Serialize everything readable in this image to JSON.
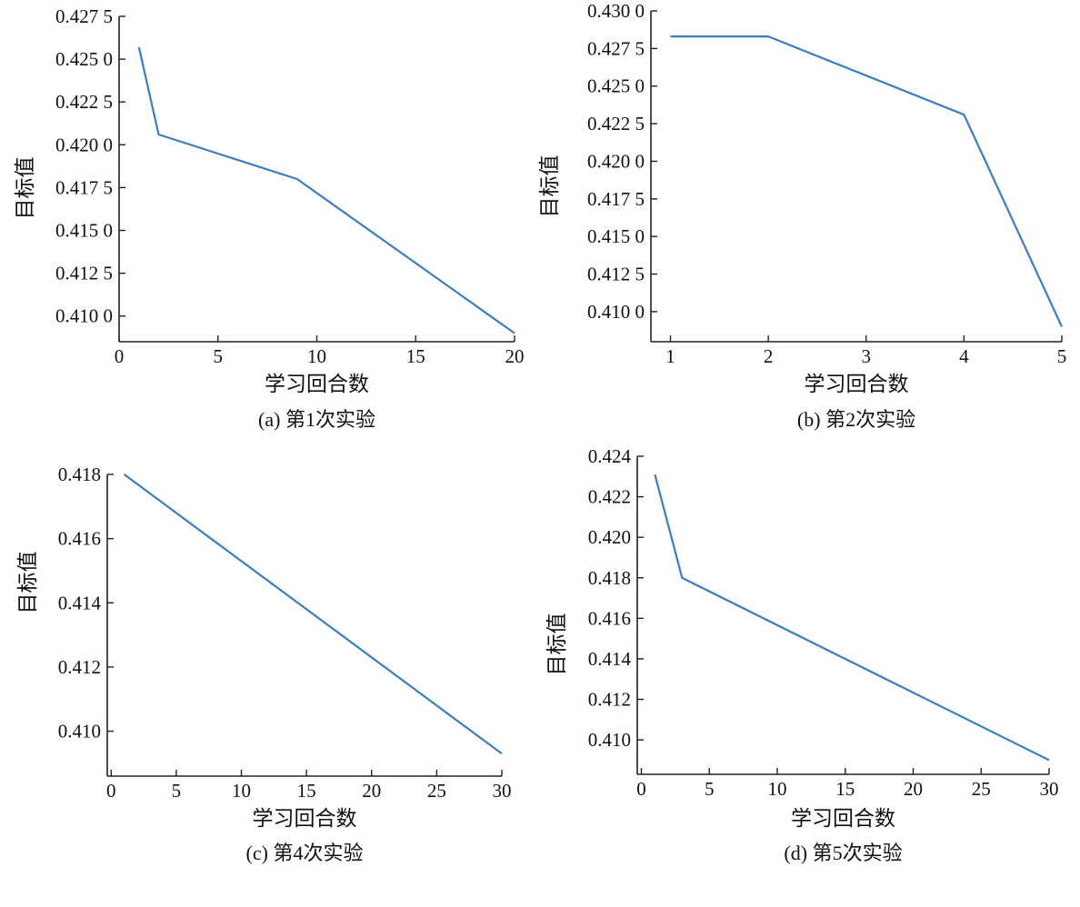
{
  "line_color": "#3a7ebf",
  "chart_data": [
    {
      "type": "line",
      "caption": "(a) 第1次实验",
      "xlabel": "学习回合数",
      "ylabel": "目标值",
      "xlim": [
        0,
        20
      ],
      "ylim": [
        0.4085,
        0.4275
      ],
      "xticks": [
        0,
        5,
        10,
        15,
        20
      ],
      "xtick_labels": [
        "0",
        "5",
        "10",
        "15",
        "20"
      ],
      "yticks": [
        0.41,
        0.4125,
        0.415,
        0.4175,
        0.42,
        0.4225,
        0.425,
        0.4275
      ],
      "ytick_labels": [
        "0.410 0",
        "0.412 5",
        "0.415 0",
        "0.417 5",
        "0.420 0",
        "0.422 5",
        "0.425 0",
        "0.427 5"
      ],
      "series": [
        {
          "x": [
            1,
            2,
            9,
            20
          ],
          "y": [
            0.4257,
            0.4206,
            0.418,
            0.409
          ]
        }
      ]
    },
    {
      "type": "line",
      "caption": "(b) 第2次实验",
      "xlabel": "学习回合数",
      "ylabel": "目标值",
      "xlim": [
        0.8,
        5
      ],
      "ylim": [
        0.408,
        0.43
      ],
      "xticks": [
        1,
        2,
        3,
        4,
        5
      ],
      "xtick_labels": [
        "1",
        "2",
        "3",
        "4",
        "5"
      ],
      "yticks": [
        0.41,
        0.4125,
        0.415,
        0.4175,
        0.42,
        0.4225,
        0.425,
        0.4275,
        0.43
      ],
      "ytick_labels": [
        "0.410 0",
        "0.412 5",
        "0.415 0",
        "0.417 5",
        "0.420 0",
        "0.422 5",
        "0.425 0",
        "0.427 5",
        "0.430 0"
      ],
      "series": [
        {
          "x": [
            1,
            2,
            4,
            5
          ],
          "y": [
            0.4283,
            0.4283,
            0.4231,
            0.409
          ]
        }
      ]
    },
    {
      "type": "line",
      "caption": "(c) 第4次实验",
      "xlabel": "学习回合数",
      "ylabel": "目标值",
      "xlim": [
        -0.3,
        30
      ],
      "ylim": [
        0.4086,
        0.418
      ],
      "xticks": [
        0,
        5,
        10,
        15,
        20,
        25,
        30
      ],
      "xtick_labels": [
        "0",
        "5",
        "10",
        "15",
        "20",
        "25",
        "30"
      ],
      "yticks": [
        0.41,
        0.412,
        0.414,
        0.416,
        0.418
      ],
      "ytick_labels": [
        "0.410",
        "0.412",
        "0.414",
        "0.416",
        "0.418"
      ],
      "series": [
        {
          "x": [
            1,
            30
          ],
          "y": [
            0.418,
            0.4093
          ]
        }
      ]
    },
    {
      "type": "line",
      "caption": "(d) 第5次实验",
      "xlabel": "学习回合数",
      "ylabel": "目标值",
      "xlim": [
        -0.3,
        30
      ],
      "ylim": [
        0.4083,
        0.424
      ],
      "xticks": [
        0,
        5,
        10,
        15,
        20,
        25,
        30
      ],
      "xtick_labels": [
        "0",
        "5",
        "10",
        "15",
        "20",
        "25",
        "30"
      ],
      "yticks": [
        0.41,
        0.412,
        0.414,
        0.416,
        0.418,
        0.42,
        0.422,
        0.424
      ],
      "ytick_labels": [
        "0.410",
        "0.412",
        "0.414",
        "0.416",
        "0.418",
        "0.420",
        "0.422",
        "0.424"
      ],
      "series": [
        {
          "x": [
            1,
            3,
            30
          ],
          "y": [
            0.4231,
            0.418,
            0.409
          ]
        }
      ]
    }
  ]
}
